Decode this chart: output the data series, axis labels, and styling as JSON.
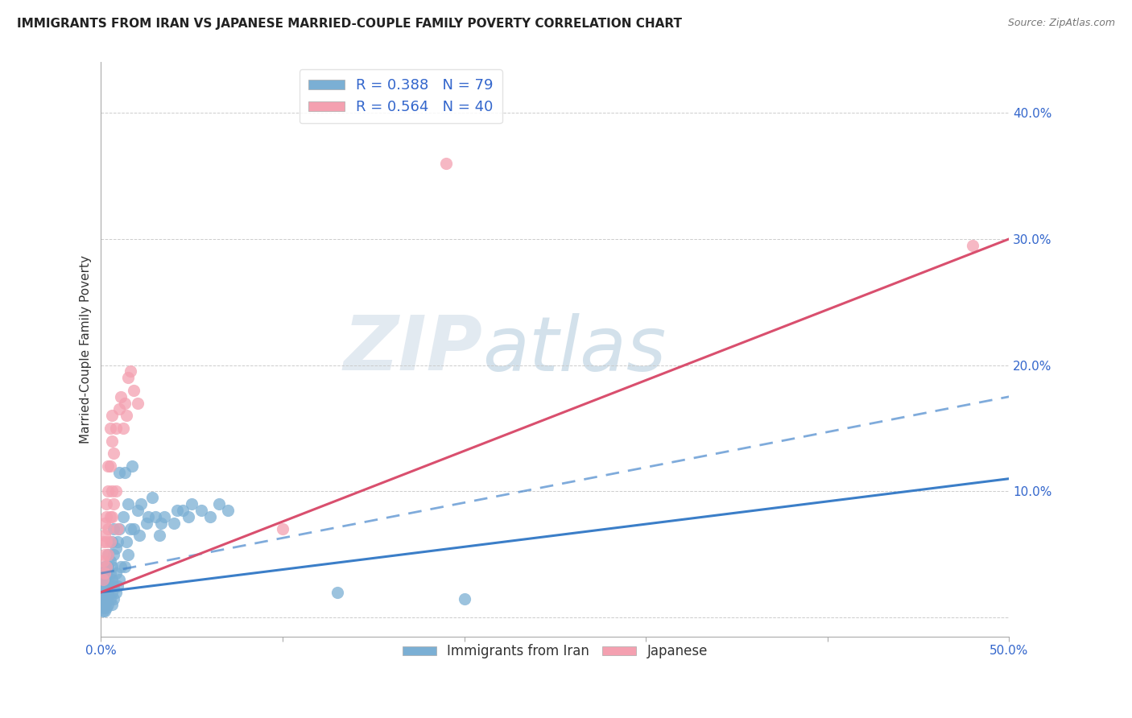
{
  "title": "IMMIGRANTS FROM IRAN VS JAPANESE MARRIED-COUPLE FAMILY POVERTY CORRELATION CHART",
  "source": "Source: ZipAtlas.com",
  "ylabel": "Married-Couple Family Poverty",
  "xlim": [
    0.0,
    0.5
  ],
  "ylim": [
    -0.015,
    0.44
  ],
  "xticks": [
    0.0,
    0.1,
    0.2,
    0.3,
    0.4,
    0.5
  ],
  "xticklabels_shown": {
    "0.0": "0.0%",
    "0.5": "50.0%"
  },
  "yticks": [
    0.0,
    0.1,
    0.2,
    0.3,
    0.4
  ],
  "yticklabels": [
    "",
    "10.0%",
    "20.0%",
    "30.0%",
    "40.0%"
  ],
  "legend_blue_label": "R = 0.388   N = 79",
  "legend_pink_label": "R = 0.564   N = 40",
  "bottom_legend_blue": "Immigrants from Iran",
  "bottom_legend_pink": "Japanese",
  "blue_color": "#7bafd4",
  "pink_color": "#f4a0b0",
  "trend_blue_color": "#3b7ec8",
  "trend_pink_color": "#d94f6e",
  "blue_trend_x": [
    0.0,
    0.5
  ],
  "blue_trend_y": [
    0.02,
    0.11
  ],
  "blue_dashed_trend_x": [
    0.0,
    0.5
  ],
  "blue_dashed_trend_y": [
    0.035,
    0.175
  ],
  "pink_trend_x": [
    0.0,
    0.5
  ],
  "pink_trend_y": [
    0.02,
    0.3
  ],
  "blue_scatter": [
    [
      0.001,
      0.005
    ],
    [
      0.001,
      0.008
    ],
    [
      0.001,
      0.01
    ],
    [
      0.001,
      0.015
    ],
    [
      0.001,
      0.02
    ],
    [
      0.001,
      0.025
    ],
    [
      0.001,
      0.03
    ],
    [
      0.002,
      0.005
    ],
    [
      0.002,
      0.01
    ],
    [
      0.002,
      0.015
    ],
    [
      0.002,
      0.02
    ],
    [
      0.002,
      0.025
    ],
    [
      0.002,
      0.03
    ],
    [
      0.002,
      0.035
    ],
    [
      0.002,
      0.04
    ],
    [
      0.003,
      0.008
    ],
    [
      0.003,
      0.015
    ],
    [
      0.003,
      0.02
    ],
    [
      0.003,
      0.025
    ],
    [
      0.003,
      0.03
    ],
    [
      0.003,
      0.035
    ],
    [
      0.003,
      0.04
    ],
    [
      0.004,
      0.01
    ],
    [
      0.004,
      0.02
    ],
    [
      0.004,
      0.03
    ],
    [
      0.004,
      0.04
    ],
    [
      0.004,
      0.05
    ],
    [
      0.005,
      0.015
    ],
    [
      0.005,
      0.025
    ],
    [
      0.005,
      0.035
    ],
    [
      0.005,
      0.045
    ],
    [
      0.006,
      0.01
    ],
    [
      0.006,
      0.02
    ],
    [
      0.006,
      0.03
    ],
    [
      0.006,
      0.04
    ],
    [
      0.006,
      0.06
    ],
    [
      0.007,
      0.015
    ],
    [
      0.007,
      0.025
    ],
    [
      0.007,
      0.05
    ],
    [
      0.007,
      0.07
    ],
    [
      0.008,
      0.02
    ],
    [
      0.008,
      0.035
    ],
    [
      0.008,
      0.055
    ],
    [
      0.009,
      0.025
    ],
    [
      0.009,
      0.06
    ],
    [
      0.01,
      0.03
    ],
    [
      0.01,
      0.07
    ],
    [
      0.01,
      0.115
    ],
    [
      0.011,
      0.04
    ],
    [
      0.012,
      0.08
    ],
    [
      0.013,
      0.04
    ],
    [
      0.013,
      0.115
    ],
    [
      0.014,
      0.06
    ],
    [
      0.015,
      0.05
    ],
    [
      0.015,
      0.09
    ],
    [
      0.016,
      0.07
    ],
    [
      0.017,
      0.12
    ],
    [
      0.018,
      0.07
    ],
    [
      0.02,
      0.085
    ],
    [
      0.021,
      0.065
    ],
    [
      0.022,
      0.09
    ],
    [
      0.025,
      0.075
    ],
    [
      0.026,
      0.08
    ],
    [
      0.028,
      0.095
    ],
    [
      0.03,
      0.08
    ],
    [
      0.032,
      0.065
    ],
    [
      0.033,
      0.075
    ],
    [
      0.035,
      0.08
    ],
    [
      0.04,
      0.075
    ],
    [
      0.042,
      0.085
    ],
    [
      0.045,
      0.085
    ],
    [
      0.048,
      0.08
    ],
    [
      0.05,
      0.09
    ],
    [
      0.055,
      0.085
    ],
    [
      0.06,
      0.08
    ],
    [
      0.065,
      0.09
    ],
    [
      0.07,
      0.085
    ],
    [
      0.13,
      0.02
    ],
    [
      0.2,
      0.015
    ]
  ],
  "pink_scatter": [
    [
      0.001,
      0.03
    ],
    [
      0.001,
      0.045
    ],
    [
      0.001,
      0.06
    ],
    [
      0.002,
      0.035
    ],
    [
      0.002,
      0.05
    ],
    [
      0.002,
      0.065
    ],
    [
      0.002,
      0.075
    ],
    [
      0.003,
      0.04
    ],
    [
      0.003,
      0.06
    ],
    [
      0.003,
      0.08
    ],
    [
      0.003,
      0.09
    ],
    [
      0.004,
      0.05
    ],
    [
      0.004,
      0.07
    ],
    [
      0.004,
      0.1
    ],
    [
      0.004,
      0.12
    ],
    [
      0.005,
      0.06
    ],
    [
      0.005,
      0.08
    ],
    [
      0.005,
      0.12
    ],
    [
      0.005,
      0.15
    ],
    [
      0.006,
      0.08
    ],
    [
      0.006,
      0.1
    ],
    [
      0.006,
      0.14
    ],
    [
      0.006,
      0.16
    ],
    [
      0.007,
      0.09
    ],
    [
      0.007,
      0.13
    ],
    [
      0.008,
      0.1
    ],
    [
      0.008,
      0.15
    ],
    [
      0.009,
      0.07
    ],
    [
      0.01,
      0.165
    ],
    [
      0.011,
      0.175
    ],
    [
      0.012,
      0.15
    ],
    [
      0.013,
      0.17
    ],
    [
      0.014,
      0.16
    ],
    [
      0.015,
      0.19
    ],
    [
      0.016,
      0.195
    ],
    [
      0.018,
      0.18
    ],
    [
      0.02,
      0.17
    ],
    [
      0.1,
      0.07
    ],
    [
      0.19,
      0.36
    ],
    [
      0.48,
      0.295
    ]
  ]
}
